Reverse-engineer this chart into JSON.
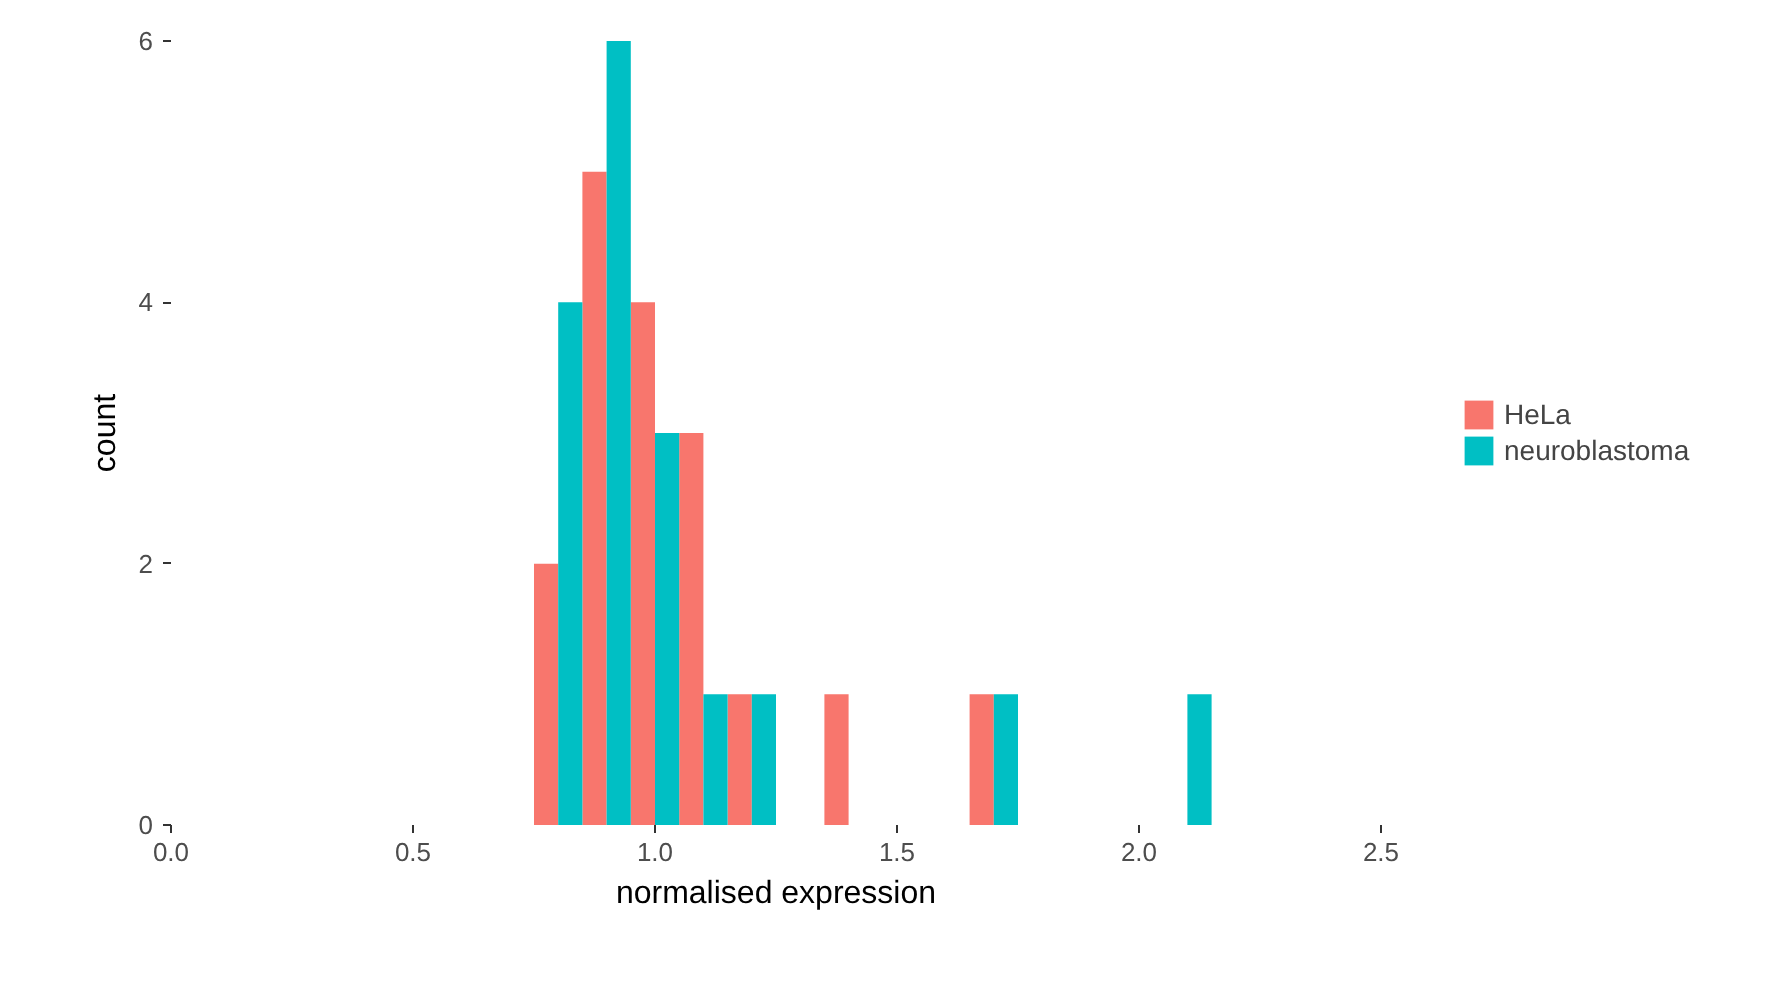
{
  "chart_data": {
    "type": "histogram",
    "xlabel": "normalised expression",
    "ylabel": "count",
    "bins": [
      0.75,
      0.85,
      0.95,
      1.05,
      1.15,
      1.25,
      1.35,
      1.45,
      1.55,
      1.65,
      1.75,
      1.85,
      1.95,
      2.05,
      2.15
    ],
    "series": [
      {
        "name": "HeLa",
        "color": "#f8766d",
        "values": [
          2,
          5,
          4,
          3,
          1,
          0,
          1,
          0,
          0,
          1,
          0,
          0,
          0,
          0
        ]
      },
      {
        "name": "neuroblastoma",
        "color": "#00bfc4",
        "values": [
          4,
          6,
          3,
          1,
          1,
          0,
          0,
          0,
          0,
          1,
          0,
          0,
          0,
          1
        ]
      }
    ],
    "xticks": [
      {
        "value": 0,
        "label": "0.0"
      },
      0.5,
      {
        "value": 1,
        "label": "1.0"
      },
      1.5,
      {
        "value": 2,
        "label": "2.0"
      },
      2.5
    ],
    "yticks": [
      0,
      2,
      4,
      6
    ],
    "xlim": [
      0,
      2.5
    ],
    "ylim": [
      0,
      6
    ],
    "grid": false,
    "legend": "right"
  }
}
